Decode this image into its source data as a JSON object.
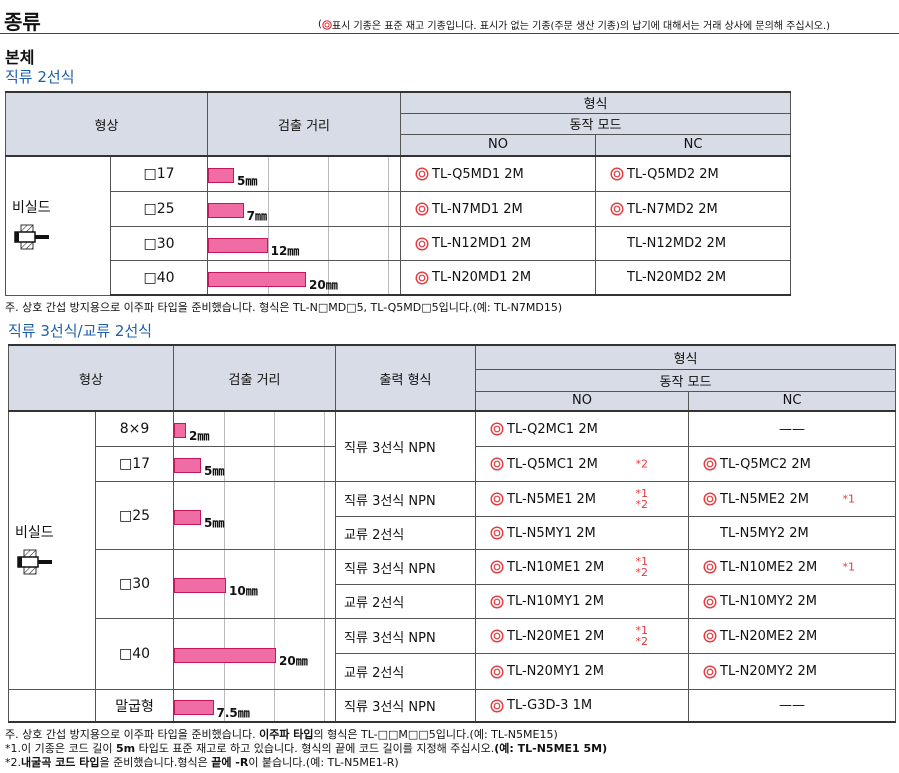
{
  "header": {
    "title": "종류",
    "notice": {
      "before": "(",
      "after": "표시 기종은 표준 재고 기종입니다. 표시가 없는 기종(주문 생산 기종)의 납기에 대해서는 거래 상사에 문의해 주십시오.)"
    }
  },
  "section": "본체",
  "table1": {
    "caption": "직류 2선식",
    "headers": {
      "shape": "형상",
      "distance": "검출 거리",
      "model": "형식",
      "mode": "동작 모드",
      "no": "NO",
      "nc": "NC"
    },
    "groups": [
      {
        "label": "비실드",
        "rows": [
          {
            "shape": "□17",
            "distance": 5,
            "distance_label": "5㎜",
            "no": {
              "stock": true,
              "text": "TL-Q5MD1 2M"
            },
            "nc": {
              "stock": true,
              "text": "TL-Q5MD2 2M"
            }
          },
          {
            "shape": "□25",
            "distance": 7,
            "distance_label": "7㎜",
            "no": {
              "stock": true,
              "text": "TL-N7MD1 2M"
            },
            "nc": {
              "stock": true,
              "text": "TL-N7MD2 2M"
            }
          },
          {
            "shape": "□30",
            "distance": 12,
            "distance_label": "12㎜",
            "no": {
              "stock": true,
              "text": "TL-N12MD1 2M"
            },
            "nc": {
              "stock": false,
              "text": "TL-N12MD2 2M"
            }
          },
          {
            "shape": "□40",
            "distance": 20,
            "distance_label": "20㎜",
            "no": {
              "stock": true,
              "text": "TL-N20MD1 2M"
            },
            "nc": {
              "stock": false,
              "text": "TL-N20MD2 2M"
            }
          }
        ]
      }
    ],
    "note": "주. 상호 간섭 방지용으로 이주파 타입을 준비했습니다. 형식은 TL-N□MD□5, TL-Q5MD□5입니다.(예: TL-N7MD15)"
  },
  "table2": {
    "caption": "직류 3선식/교류 2선식",
    "headers": {
      "shape": "형상",
      "distance": "검출 거리",
      "output": "출력 형식",
      "model": "형식",
      "mode": "동작 모드",
      "no": "NO",
      "nc": "NC"
    },
    "groups": [
      {
        "label": "비실드",
        "rows": [
          {
            "shape": "8×9",
            "distance": 2,
            "distance_label": "2㎜",
            "output": "직류 3선식 NPN",
            "no": {
              "stock": true,
              "text": "TL-Q2MC1 2M"
            },
            "nc": {
              "stock": false,
              "text": "——"
            }
          },
          {
            "shape": "□17",
            "distance": 5,
            "distance_label": "5㎜",
            "no": {
              "stock": true,
              "text": "TL-Q5MC1 2M",
              "refs": [
                "*2"
              ]
            },
            "nc": {
              "stock": true,
              "text": "TL-Q5MC2 2M"
            }
          },
          {
            "shape": "□25",
            "distance": 5,
            "distance_label": "5㎜",
            "output": "직류 3선식 NPN",
            "no": {
              "stock": true,
              "text": "TL-N5ME1 2M",
              "refs": [
                "*1",
                "*2"
              ]
            },
            "nc": {
              "stock": true,
              "text": "TL-N5ME2 2M",
              "refs": [
                "*1"
              ]
            }
          },
          {
            "output": "교류 2선식",
            "no": {
              "stock": true,
              "text": "TL-N5MY1 2M"
            },
            "nc": {
              "stock": false,
              "text": "TL-N5MY2 2M"
            }
          },
          {
            "shape": "□30",
            "distance": 10,
            "distance_label": "10㎜",
            "output": "직류 3선식 NPN",
            "no": {
              "stock": true,
              "text": "TL-N10ME1 2M",
              "refs": [
                "*1",
                "*2"
              ]
            },
            "nc": {
              "stock": true,
              "text": "TL-N10ME2 2M",
              "refs": [
                "*1"
              ]
            }
          },
          {
            "output": "교류 2선식",
            "no": {
              "stock": true,
              "text": "TL-N10MY1 2M"
            },
            "nc": {
              "stock": true,
              "text": "TL-N10MY2 2M"
            }
          },
          {
            "shape": "□40",
            "distance": 20,
            "distance_label": "20㎜",
            "output": "직류 3선식 NPN",
            "no": {
              "stock": true,
              "text": "TL-N20ME1 2M",
              "refs": [
                "*1",
                "*2"
              ]
            },
            "nc": {
              "stock": true,
              "text": "TL-N20ME2 2M"
            }
          },
          {
            "output": "교류 2선식",
            "no": {
              "stock": true,
              "text": "TL-N20MY1 2M"
            },
            "nc": {
              "stock": true,
              "text": "TL-N20MY2 2M"
            }
          }
        ]
      },
      {
        "rows": [
          {
            "shape": "말굽형",
            "distance": 7.5,
            "distance_label": "7.5㎜",
            "output": "직류 3선식  NPN",
            "no": {
              "stock": true,
              "text": "TL-G3D-3 1M"
            },
            "nc": {
              "stock": false,
              "text": "——"
            }
          }
        ]
      }
    ],
    "notes": [
      [
        {
          "text": "주. 상호 간섭 방지용으로 이주파 타입을 준비했습니다. ",
          "bold": false
        },
        {
          "text": "이주파 타입",
          "bold": true
        },
        {
          "text": "의 형식은 TL-□□M□□5입니다.(예: TL-N5ME15)",
          "bold": false
        }
      ],
      [
        {
          "text": "*1.이 기종은 코드 길이 ",
          "bold": false
        },
        {
          "text": "5m",
          "bold": true
        },
        {
          "text": " 타입도 표준 재고로 하고 있습니다. 형식의 끝에 코드 길이를 지정해 주십시오.",
          "bold": false
        },
        {
          "text": "(예: TL-N5ME1 5M)",
          "bold": true
        }
      ],
      [
        {
          "text": "*2.",
          "bold": false
        },
        {
          "text": "내굴곡 코드 타입",
          "bold": true
        },
        {
          "text": "을 준비했습니다.형식은 ",
          "bold": false
        },
        {
          "text": "끝에 -R",
          "bold": true
        },
        {
          "text": "이 붙습니다.(예: TL-N5ME1-R)",
          "bold": false
        }
      ]
    ]
  }
}
